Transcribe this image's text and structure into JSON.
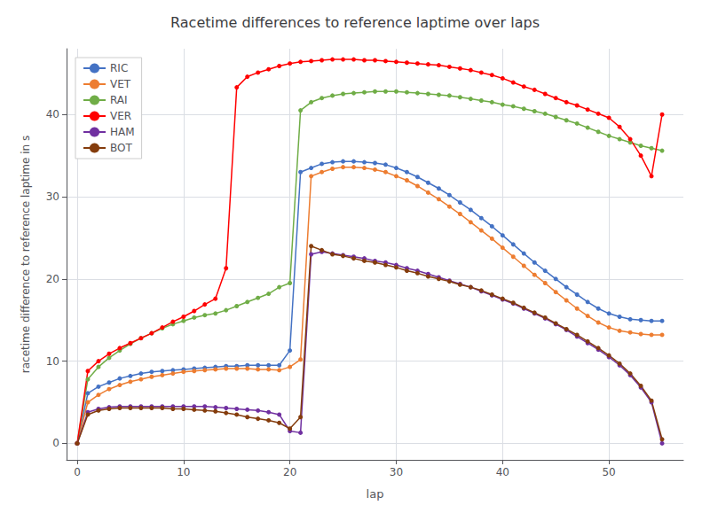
{
  "chart_data": {
    "type": "line",
    "title": "Racetime differences to reference laptime over laps",
    "xlabel": "lap",
    "ylabel": "racetime difference to reference laptime in s",
    "x": [
      0,
      1,
      2,
      3,
      4,
      5,
      6,
      7,
      8,
      9,
      10,
      11,
      12,
      13,
      14,
      15,
      16,
      17,
      18,
      19,
      20,
      21,
      22,
      23,
      24,
      25,
      26,
      27,
      28,
      29,
      30,
      31,
      32,
      33,
      34,
      35,
      36,
      37,
      38,
      39,
      40,
      41,
      42,
      43,
      44,
      45,
      46,
      47,
      48,
      49,
      50,
      51,
      52,
      53,
      54,
      55
    ],
    "series": [
      {
        "name": "RIC",
        "color": "#4472c4",
        "values": [
          0.0,
          6.1,
          6.9,
          7.4,
          7.9,
          8.2,
          8.5,
          8.7,
          8.8,
          8.9,
          9.0,
          9.1,
          9.2,
          9.3,
          9.4,
          9.4,
          9.5,
          9.5,
          9.5,
          9.5,
          11.3,
          33.0,
          33.5,
          34.0,
          34.2,
          34.3,
          34.3,
          34.2,
          34.1,
          33.9,
          33.5,
          33.0,
          32.4,
          31.7,
          31.0,
          30.2,
          29.3,
          28.4,
          27.4,
          26.4,
          25.3,
          24.2,
          23.1,
          22.0,
          21.0,
          20.0,
          19.0,
          18.1,
          17.2,
          16.4,
          15.8,
          15.4,
          15.1,
          15.0,
          14.9,
          14.9
        ]
      },
      {
        "name": "VET",
        "color": "#ed7d31",
        "values": [
          0.0,
          5.0,
          5.9,
          6.6,
          7.1,
          7.5,
          7.8,
          8.1,
          8.3,
          8.5,
          8.7,
          8.8,
          8.9,
          9.0,
          9.1,
          9.1,
          9.1,
          9.0,
          9.0,
          8.9,
          9.3,
          10.2,
          32.5,
          33.0,
          33.4,
          33.6,
          33.6,
          33.5,
          33.3,
          33.0,
          32.5,
          32.0,
          31.3,
          30.5,
          29.7,
          28.8,
          27.9,
          26.9,
          25.9,
          24.9,
          23.8,
          22.7,
          21.6,
          20.5,
          19.5,
          18.4,
          17.4,
          16.4,
          15.5,
          14.7,
          14.1,
          13.7,
          13.5,
          13.3,
          13.2,
          13.2
        ]
      },
      {
        "name": "RAI",
        "color": "#70ad47",
        "values": [
          0.0,
          7.8,
          9.3,
          10.4,
          11.3,
          12.1,
          12.8,
          13.4,
          14.0,
          14.5,
          14.9,
          15.3,
          15.6,
          15.8,
          16.2,
          16.7,
          17.2,
          17.7,
          18.2,
          19.0,
          19.5,
          40.5,
          41.5,
          42.0,
          42.3,
          42.5,
          42.6,
          42.7,
          42.8,
          42.8,
          42.8,
          42.7,
          42.6,
          42.5,
          42.4,
          42.3,
          42.1,
          41.9,
          41.7,
          41.5,
          41.2,
          41.0,
          40.7,
          40.4,
          40.1,
          39.7,
          39.3,
          38.9,
          38.4,
          37.9,
          37.4,
          37.0,
          36.6,
          36.2,
          35.9,
          35.6
        ]
      },
      {
        "name": "VER",
        "color": "#ff0000",
        "values": [
          0.0,
          8.8,
          10.0,
          10.9,
          11.6,
          12.2,
          12.8,
          13.4,
          14.1,
          14.8,
          15.4,
          16.1,
          16.9,
          17.6,
          21.3,
          43.3,
          44.6,
          45.1,
          45.5,
          45.9,
          46.2,
          46.4,
          46.5,
          46.6,
          46.7,
          46.7,
          46.7,
          46.6,
          46.6,
          46.5,
          46.4,
          46.3,
          46.2,
          46.1,
          46.0,
          45.8,
          45.6,
          45.4,
          45.1,
          44.8,
          44.4,
          43.9,
          43.4,
          43.0,
          42.5,
          42.0,
          41.5,
          41.1,
          40.6,
          40.1,
          39.6,
          38.5,
          37.0,
          35.0,
          32.5,
          40.0
        ]
      },
      {
        "name": "HAM",
        "color": "#7030a0",
        "values": [
          0.0,
          3.8,
          4.2,
          4.4,
          4.5,
          4.5,
          4.5,
          4.5,
          4.5,
          4.5,
          4.5,
          4.5,
          4.5,
          4.4,
          4.3,
          4.2,
          4.1,
          4.0,
          3.8,
          3.5,
          1.5,
          1.3,
          23.0,
          23.3,
          23.1,
          22.9,
          22.7,
          22.5,
          22.2,
          22.0,
          21.7,
          21.3,
          21.0,
          20.6,
          20.2,
          19.8,
          19.4,
          19.0,
          18.5,
          18.0,
          17.5,
          17.0,
          16.4,
          15.8,
          15.2,
          14.5,
          13.8,
          13.0,
          12.2,
          11.4,
          10.5,
          9.5,
          8.3,
          6.8,
          5.0,
          0.0
        ]
      },
      {
        "name": "BOT",
        "color": "#843c0c",
        "values": [
          0.0,
          3.5,
          4.0,
          4.2,
          4.3,
          4.3,
          4.3,
          4.3,
          4.3,
          4.2,
          4.2,
          4.1,
          4.0,
          3.9,
          3.7,
          3.5,
          3.2,
          3.0,
          2.8,
          2.5,
          1.8,
          3.2,
          24.0,
          23.5,
          23.0,
          22.8,
          22.5,
          22.2,
          22.0,
          21.7,
          21.4,
          21.0,
          20.7,
          20.3,
          20.0,
          19.7,
          19.3,
          19.0,
          18.6,
          18.1,
          17.6,
          17.1,
          16.5,
          15.9,
          15.3,
          14.6,
          13.9,
          13.2,
          12.4,
          11.6,
          10.7,
          9.7,
          8.5,
          7.0,
          5.2,
          0.5
        ]
      }
    ],
    "xlim": [
      -1,
      57
    ],
    "ylim": [
      -2,
      48
    ],
    "xticks": [
      0,
      10,
      20,
      30,
      40,
      50
    ],
    "yticks": [
      0,
      10,
      20,
      30,
      40
    ],
    "grid": true,
    "legend": "upper left",
    "marker": "circle"
  }
}
